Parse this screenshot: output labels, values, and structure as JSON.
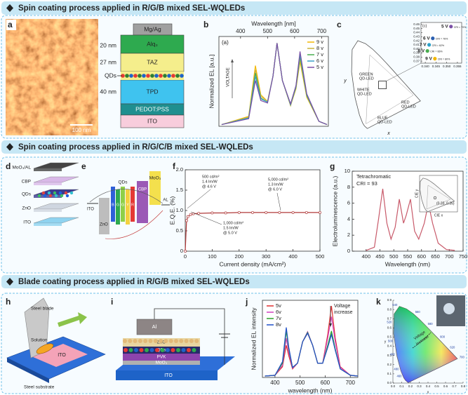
{
  "sections": [
    {
      "title": "Spin coating process applied in R/G/B mixed SEL-WQLEDs",
      "panel_a": {
        "letter": "a",
        "scale_bar": "100 nm"
      },
      "stack": {
        "layers": [
          "Mg/Ag",
          "Alq₃",
          "TAZ",
          "TPD",
          "PEDOT:PSS",
          "ITO"
        ],
        "side_labels": [
          "20 nm",
          "27 nm",
          "QDs",
          "40 nm"
        ]
      },
      "panel_b": {
        "letter": "b",
        "chart": {
          "type": "line",
          "tag": "(a)",
          "xlabel": "Wavelength [nm]",
          "ylabel": "Normalized EL [a.u.]",
          "xaxis": "top",
          "xlim": [
            320,
            725
          ],
          "ylim": [
            0,
            1.08
          ],
          "xticks": [
            400,
            500,
            600,
            700
          ],
          "legend": "upper right",
          "annotation": "VOLTAGE",
          "x": [
            330,
            430,
            455,
            475,
            500,
            520,
            535,
            555,
            585,
            605,
            620,
            645,
            690,
            720
          ],
          "series": [
            {
              "name": "9 v",
              "color": "#f2b705",
              "values": [
                0.02,
                0.12,
                0.73,
                0.38,
                0.3,
                0.6,
                1.0,
                0.55,
                0.25,
                0.45,
                0.78,
                0.35,
                0.06,
                0.02
              ]
            },
            {
              "name": "8 v",
              "color": "#c9b23a",
              "values": [
                0.02,
                0.11,
                0.68,
                0.36,
                0.3,
                0.6,
                1.0,
                0.55,
                0.25,
                0.46,
                0.81,
                0.36,
                0.06,
                0.02
              ]
            },
            {
              "name": "7 v",
              "color": "#49ad4f",
              "values": [
                0.02,
                0.1,
                0.64,
                0.34,
                0.29,
                0.6,
                1.0,
                0.55,
                0.26,
                0.47,
                0.84,
                0.37,
                0.06,
                0.02
              ]
            },
            {
              "name": "6 v",
              "color": "#3a9fc8",
              "values": [
                0.02,
                0.1,
                0.6,
                0.33,
                0.29,
                0.6,
                1.0,
                0.55,
                0.26,
                0.48,
                0.87,
                0.38,
                0.06,
                0.02
              ]
            },
            {
              "name": "5 v",
              "color": "#7b4fa6",
              "values": [
                0.02,
                0.09,
                0.55,
                0.31,
                0.28,
                0.6,
                1.0,
                0.55,
                0.27,
                0.49,
                0.9,
                0.39,
                0.06,
                0.02
              ]
            }
          ]
        }
      },
      "panel_c": {
        "letter": "c",
        "xlabel": "x",
        "ylabel": "y",
        "labels": [
          [
            "GREEN",
            "QD-LED"
          ],
          [
            "WHITE",
            "QD-LED"
          ],
          [
            "RED",
            "QD-LED"
          ],
          [
            "BLUE",
            "QD-LED"
          ]
        ],
        "inset": {
          "tag": "(c)",
          "xlim": [
            0.338,
            0.357
          ],
          "ylim": [
            0.365,
            0.465
          ],
          "xticks": [
            {
              "value": 0.34,
              "label": "0.340"
            },
            {
              "value": 0.345,
              "label": "0.345"
            },
            {
              "value": 0.35,
              "label": "0.350"
            },
            {
              "value": 0.355,
              "label": "0.355"
            }
          ],
          "yticks": [
            0.37,
            0.38,
            0.39,
            {
              "value": 0.4,
              "label": "0.40"
            },
            0.41,
            0.42,
            0.43,
            0.44,
            0.45,
            0.46
          ],
          "points": [
            {
              "label": "5 V",
              "x": 0.352,
              "y": 0.455,
              "color": "#7b4fa6",
              "cri": "CRI = 70%"
            },
            {
              "label": "6 V",
              "x": 0.3435,
              "y": 0.426,
              "color": "#2b5fb0",
              "cri": "CRI = 76%"
            },
            {
              "label": "7 V",
              "x": 0.3418,
              "y": 0.41,
              "color": "#2aa0c8",
              "cri": "CRI = 62%"
            },
            {
              "label": "8 V",
              "x": 0.341,
              "y": 0.395,
              "color": "#49ad4f",
              "cri": "CRI = 66%"
            },
            {
              "label": "9 V",
              "x": 0.3445,
              "y": 0.376,
              "color": "#f2b705",
              "cri": "CRI = 80%"
            }
          ]
        }
      }
    },
    {
      "title": "Spin coating process applied in R/G/C/B mixed SEL-WQLEDs",
      "panel_d": {
        "letter": "d",
        "labels": [
          "MoO₃/AL",
          "CBP",
          "QDs",
          "ZnO",
          "ITO"
        ]
      },
      "panel_e": {
        "letter": "e",
        "ito": "ITO",
        "zno": "ZnO",
        "qds": "QDs",
        "emitters": [
          "B",
          "G",
          "G",
          "Y",
          "R"
        ],
        "cbp": "CBP",
        "moo3": "MoO₃",
        "al": "AL"
      },
      "panel_f": {
        "letter": "f",
        "chart": {
          "type": "line",
          "xlabel": "Current density (mA/cm²)",
          "ylabel": "E.Q.E. (%)",
          "markers": true,
          "color": "#b03a3a",
          "xlim": [
            0,
            500
          ],
          "ylim": [
            0,
            2
          ],
          "xticks": [
            0,
            100,
            200,
            300,
            400,
            500
          ],
          "yticks": [
            0,
            0.5,
            {
              "value": 1,
              "label": "1.0"
            },
            1.5,
            {
              "value": 2,
              "label": "2.0"
            }
          ],
          "x": [
            0,
            5,
            10,
            20,
            30,
            50,
            100,
            150,
            200,
            250,
            300,
            350,
            400,
            450,
            500
          ],
          "series": [
            {
              "color": "#b03a3a",
              "values": [
                0,
                0.75,
                0.85,
                0.9,
                0.92,
                0.93,
                0.94,
                0.94,
                0.95,
                0.95,
                0.95,
                0.95,
                0.95,
                0.95,
                0.95
              ]
            }
          ],
          "annotations": [
            [
              "500 cd/m²",
              "1.4 lm/W",
              "@ 4.6 V"
            ],
            [
              "5,000 cd/m²",
              "1.3 lm/W",
              "@ 6.0 V"
            ],
            [
              "1,000 cd/m²",
              "1.5 lm/W",
              "@ 5.0 V"
            ]
          ]
        }
      },
      "panel_g": {
        "letter": "g",
        "chart": {
          "type": "line",
          "xlabel": "Wavelength (nm)",
          "ylabel": "Electroluminescence (a.u.)",
          "xlim": [
            350,
            750
          ],
          "ylim": [
            0,
            10
          ],
          "xticks": [
            400,
            450,
            500,
            550,
            600,
            650,
            700,
            750
          ],
          "yticks": [
            0,
            2,
            4,
            6,
            8,
            10
          ],
          "x": [
            400,
            430,
            445,
            460,
            475,
            490,
            505,
            520,
            535,
            545,
            560,
            575,
            590,
            610,
            625,
            640,
            660,
            690,
            720
          ],
          "series": [
            {
              "color": "#c85a6a",
              "values": [
                0.1,
                0.5,
                4,
                7.8,
                3.5,
                1.5,
                3,
                6.5,
                3.5,
                4.5,
                6.5,
                2.5,
                1.5,
                3.5,
                6,
                3.5,
                1,
                0.2,
                0.1
              ]
            }
          ],
          "annotations": [
            [
              "Tetrachromatic",
              "CRI = 93"
            ]
          ],
          "inset": {
            "point_label": "(0.33, 0.35)",
            "xlabel": "CIE x",
            "ylabel": "CIE y"
          }
        }
      }
    },
    {
      "title": "Blade coating process applied in R/G/B mixed SEL-WQLEDs",
      "panel_h": {
        "letter": "h",
        "labels": [
          "Steel blade",
          "Solution",
          "ITO",
          "Steel substrate"
        ]
      },
      "panel_i": {
        "letter": "i",
        "layers": [
          "Al",
          "ZnO",
          "QDs",
          "PVK",
          "MoO₃",
          "ITO"
        ]
      },
      "panel_j": {
        "letter": "j",
        "chart": {
          "type": "line",
          "xlabel": "wavelength (nm)",
          "ylabel": "Normalized EL intensity",
          "xlim": [
            350,
            730
          ],
          "ylim": [
            0,
            1.08
          ],
          "xticks": [
            400,
            500,
            600,
            700
          ],
          "legend": "upper left",
          "x": [
            360,
            400,
            430,
            445,
            455,
            470,
            490,
            510,
            530,
            550,
            570,
            590,
            610,
            625,
            640,
            660,
            700,
            730
          ],
          "series": [
            {
              "name": "5v",
              "color": "#e03030",
              "values": [
                0.02,
                0.03,
                0.15,
                0.45,
                0.3,
                0.12,
                0.2,
                0.5,
                0.62,
                0.45,
                0.2,
                0.2,
                0.6,
                1.0,
                0.55,
                0.15,
                0.03,
                0.02
              ]
            },
            {
              "name": "6v",
              "color": "#d040c0",
              "values": [
                0.02,
                0.03,
                0.17,
                0.55,
                0.35,
                0.13,
                0.2,
                0.5,
                0.64,
                0.45,
                0.2,
                0.2,
                0.55,
                0.85,
                0.5,
                0.14,
                0.03,
                0.02
              ]
            },
            {
              "name": "7v",
              "color": "#2ca02c",
              "values": [
                0.02,
                0.03,
                0.2,
                0.65,
                0.4,
                0.14,
                0.2,
                0.5,
                0.63,
                0.45,
                0.2,
                0.2,
                0.45,
                0.65,
                0.4,
                0.12,
                0.03,
                0.02
              ]
            },
            {
              "name": "8v",
              "color": "#2050c8",
              "values": [
                0.02,
                0.03,
                0.22,
                0.7,
                0.42,
                0.14,
                0.2,
                0.5,
                0.62,
                0.45,
                0.2,
                0.2,
                0.42,
                0.6,
                0.38,
                0.12,
                0.03,
                0.02
              ]
            }
          ],
          "annotations": [
            [
              "Voltage",
              "increase"
            ]
          ]
        }
      },
      "panel_k": {
        "letter": "k",
        "xlabel": "x",
        "ylabel": "y",
        "xticks": [
          {
            "value": 0,
            "label": "0.0"
          },
          0.1,
          0.2,
          0.3,
          0.4,
          0.5,
          0.6,
          0.7,
          0.8
        ],
        "yticks": [
          {
            "value": 0,
            "label": "0.0"
          },
          0.1,
          0.2,
          0.3,
          0.4,
          0.5,
          0.6,
          0.7,
          0.8,
          0.9
        ],
        "wavelengths": [
          460,
          480,
          490,
          500,
          520,
          540,
          560,
          580,
          600,
          620,
          700
        ],
        "annotation": [
          "Voltage",
          "increase"
        ]
      }
    }
  ]
}
